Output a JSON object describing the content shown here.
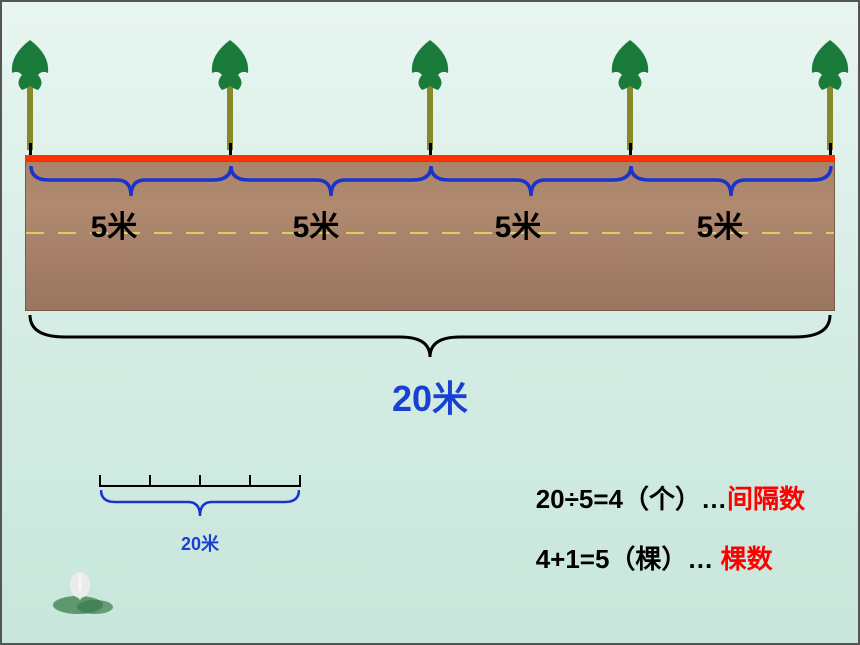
{
  "diagram": {
    "tree_count": 5,
    "tree_positions_pct": [
      0,
      25,
      50,
      75,
      100
    ],
    "tree_foliage_color": "#1a7a3a",
    "tree_trunk_color": "#88882a",
    "segment_labels": [
      "5米",
      "5米",
      "5米",
      "5米"
    ],
    "segment_label_positions_pct": [
      8,
      33,
      58,
      83
    ],
    "segment_label_fontsize": 30,
    "segment_brace_color": "#1a33cc",
    "road_line_color": "#ff3300",
    "road_bg_colors": [
      "#a8826a",
      "#9a7560"
    ],
    "road_dash_color": "#d8d060",
    "total_label": "20米",
    "total_label_color": "#1a3fd4",
    "total_label_fontsize": 36,
    "total_brace_color": "#000000"
  },
  "mini": {
    "tick_count": 5,
    "label": "20米",
    "brace_color": "#1a33cc",
    "label_color": "#1a3fd4"
  },
  "formulas": {
    "line1_main": "20÷5=4（个）…",
    "line1_highlight": "间隔数",
    "line2_main": "4+1=5（棵）… ",
    "line2_highlight": "棵数",
    "highlight_color": "#ff0000",
    "fontsize": 26
  },
  "styling": {
    "background_gradient": [
      "#e8f5f0",
      "#c8e6db"
    ],
    "lotus_petal_color": "#e8e8e8",
    "lotus_leaf_color": "#4a8a5a"
  }
}
